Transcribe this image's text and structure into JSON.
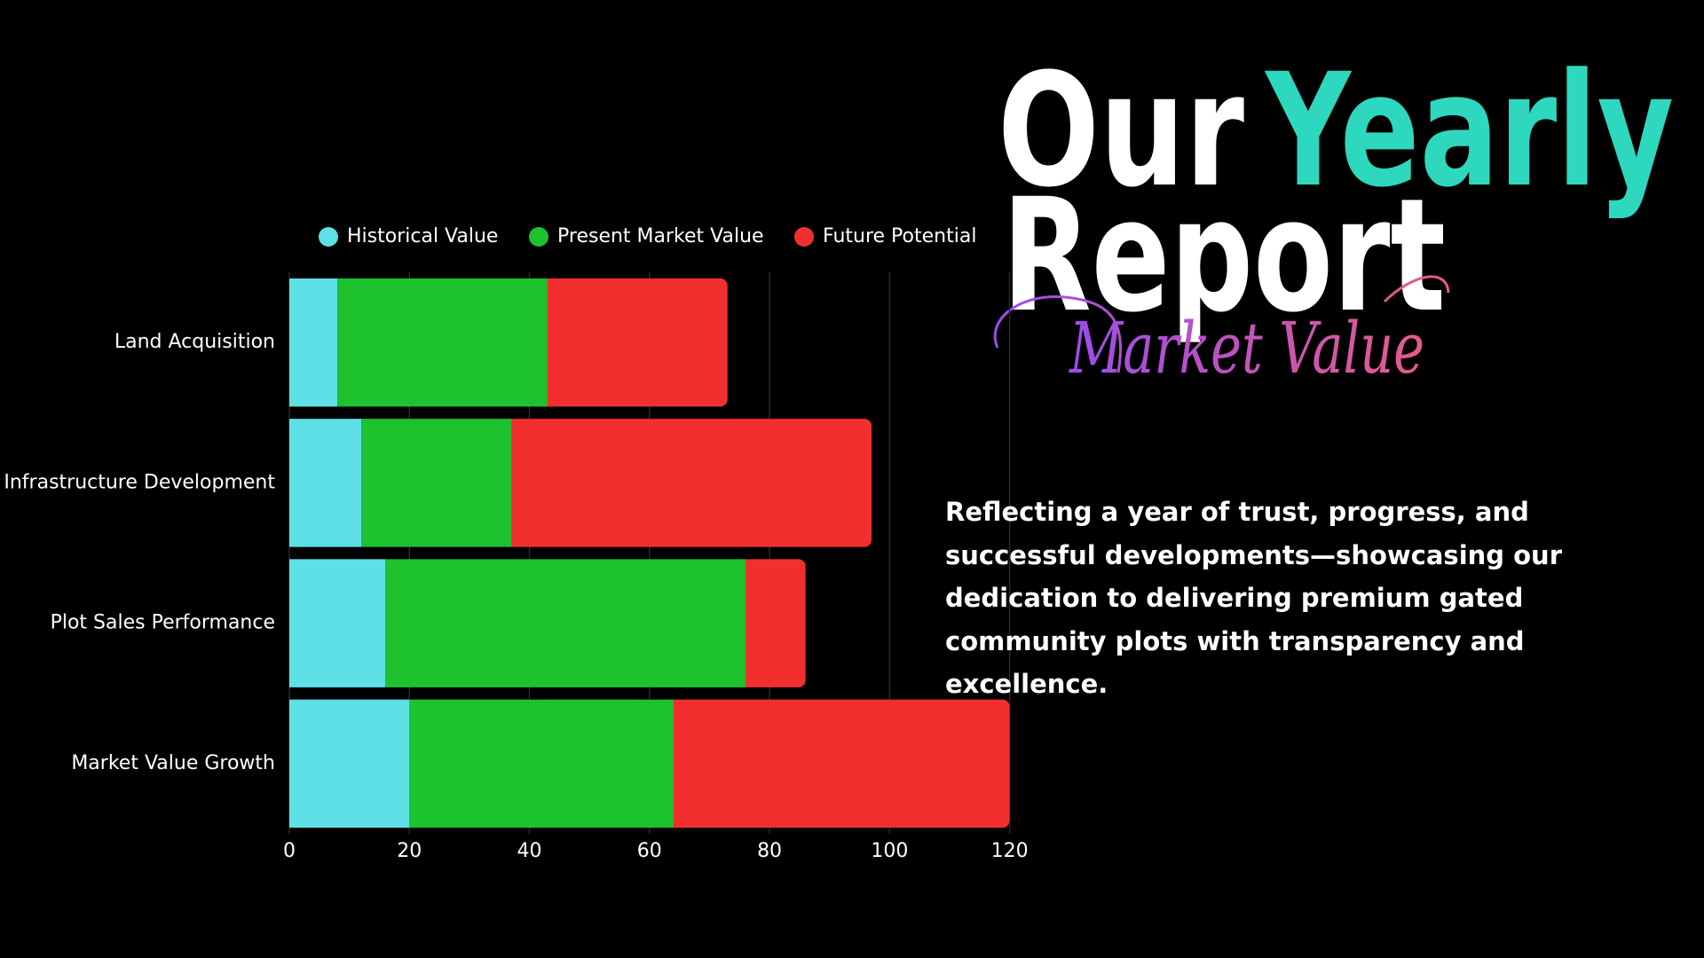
{
  "chart_data": {
    "type": "bar",
    "orientation": "horizontal",
    "categories": [
      "Land Acquisition",
      "Infrastructure Development",
      "Plot Sales Performance",
      "Market Value Growth"
    ],
    "series": [
      {
        "name": "Historical Value",
        "color": "#5ee0e6",
        "values": [
          8,
          12,
          16,
          20
        ]
      },
      {
        "name": "Present Market Value",
        "color": "#1dc22e",
        "values": [
          35,
          25,
          60,
          44
        ]
      },
      {
        "name": "Future Potential",
        "color": "#f22f2f",
        "values": [
          30,
          60,
          10,
          56
        ]
      }
    ],
    "stacked": true,
    "xlim": [
      0,
      120
    ],
    "xticks": [
      0,
      20,
      40,
      60,
      80,
      100,
      120
    ],
    "grid": true,
    "legend": "top"
  },
  "header": {
    "title_1": "Our",
    "title_2": "Yearly",
    "title_3": "Report",
    "script": "Market Value"
  },
  "description": "Reflecting a year of trust, progress, and successful developments—showcasing our dedication to delivering premium gated community plots with transparency and excellence."
}
